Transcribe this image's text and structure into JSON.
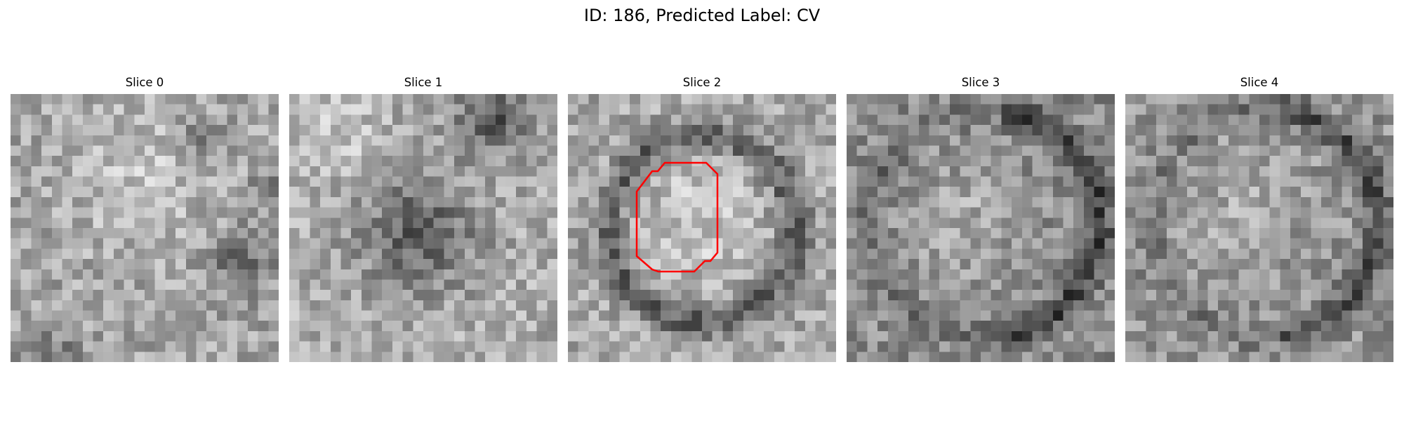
{
  "figure": {
    "title": "ID: 186, Predicted Label: CV"
  },
  "panels": [
    {
      "title": "Slice 0",
      "has_contour": false
    },
    {
      "title": "Slice 1",
      "has_contour": false
    },
    {
      "title": "Slice 2",
      "has_contour": true
    },
    {
      "title": "Slice 3",
      "has_contour": false
    },
    {
      "title": "Slice 4",
      "has_contour": false
    }
  ],
  "image": {
    "grid_size": 26,
    "colormap": "gray"
  },
  "contour": {
    "color": "#ff0000"
  }
}
